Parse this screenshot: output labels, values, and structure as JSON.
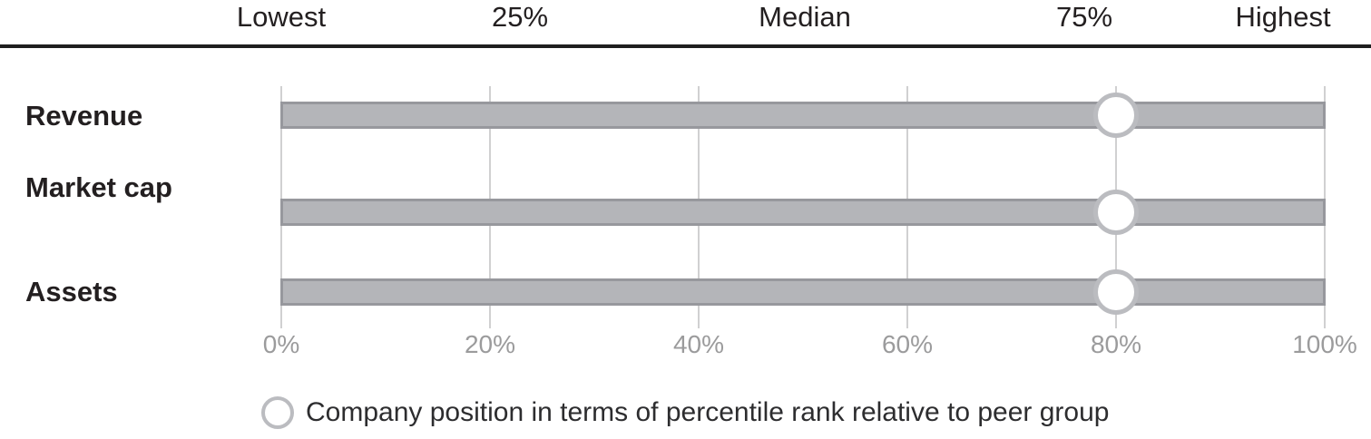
{
  "title_row": {
    "labels": [
      "Lowest",
      "25%",
      "Median",
      "75%",
      "Highest"
    ]
  },
  "rows": [
    {
      "label": "Revenue",
      "range_pct": [
        0,
        100
      ],
      "position_pct": 80
    },
    {
      "label": "Market cap",
      "range_pct": [
        0,
        100
      ],
      "position_pct": 80
    },
    {
      "label": "Assets",
      "range_pct": [
        0,
        100
      ],
      "position_pct": 80
    }
  ],
  "x_axis": {
    "ticks": [
      "0%",
      "20%",
      "40%",
      "60%",
      "80%",
      "100%"
    ]
  },
  "legend": {
    "marker": "circle-outline",
    "text": "Company position in terms of percentile rank relative to peer group"
  },
  "colors": {
    "bar_fill": "#b4b5b9",
    "bar_border": "#97989d",
    "marker_stroke": "#bbbcc0",
    "marker_fill": "#ffffff",
    "gridline": "#d0d0d1",
    "divider": "#1f1f1f",
    "heading_text": "#231f20",
    "axis_text": "#9b9b9c"
  },
  "chart_data": {
    "type": "bar",
    "subtype": "horizontal-percentile-range-with-markers",
    "categories": [
      "Revenue",
      "Market cap",
      "Assets"
    ],
    "series": [
      {
        "name": "Peer group range",
        "representation": "gray-range-bar",
        "values": [
          [
            0,
            100
          ],
          [
            0,
            100
          ],
          [
            0,
            100
          ]
        ]
      },
      {
        "name": "Company position",
        "representation": "white-circle-marker",
        "values": [
          80,
          80,
          80
        ]
      }
    ],
    "x_axis": {
      "min": 0,
      "max": 100,
      "tick_labels": [
        "0%",
        "20%",
        "40%",
        "60%",
        "80%",
        "100%"
      ],
      "grid": true
    },
    "header_scale_labels": [
      "Lowest",
      "25%",
      "Median",
      "75%",
      "Highest"
    ],
    "title": "",
    "xlabel": "",
    "ylabel": "",
    "legend": {
      "position": "bottom",
      "text": "Company position in terms of percentile rank relative to peer group"
    }
  }
}
